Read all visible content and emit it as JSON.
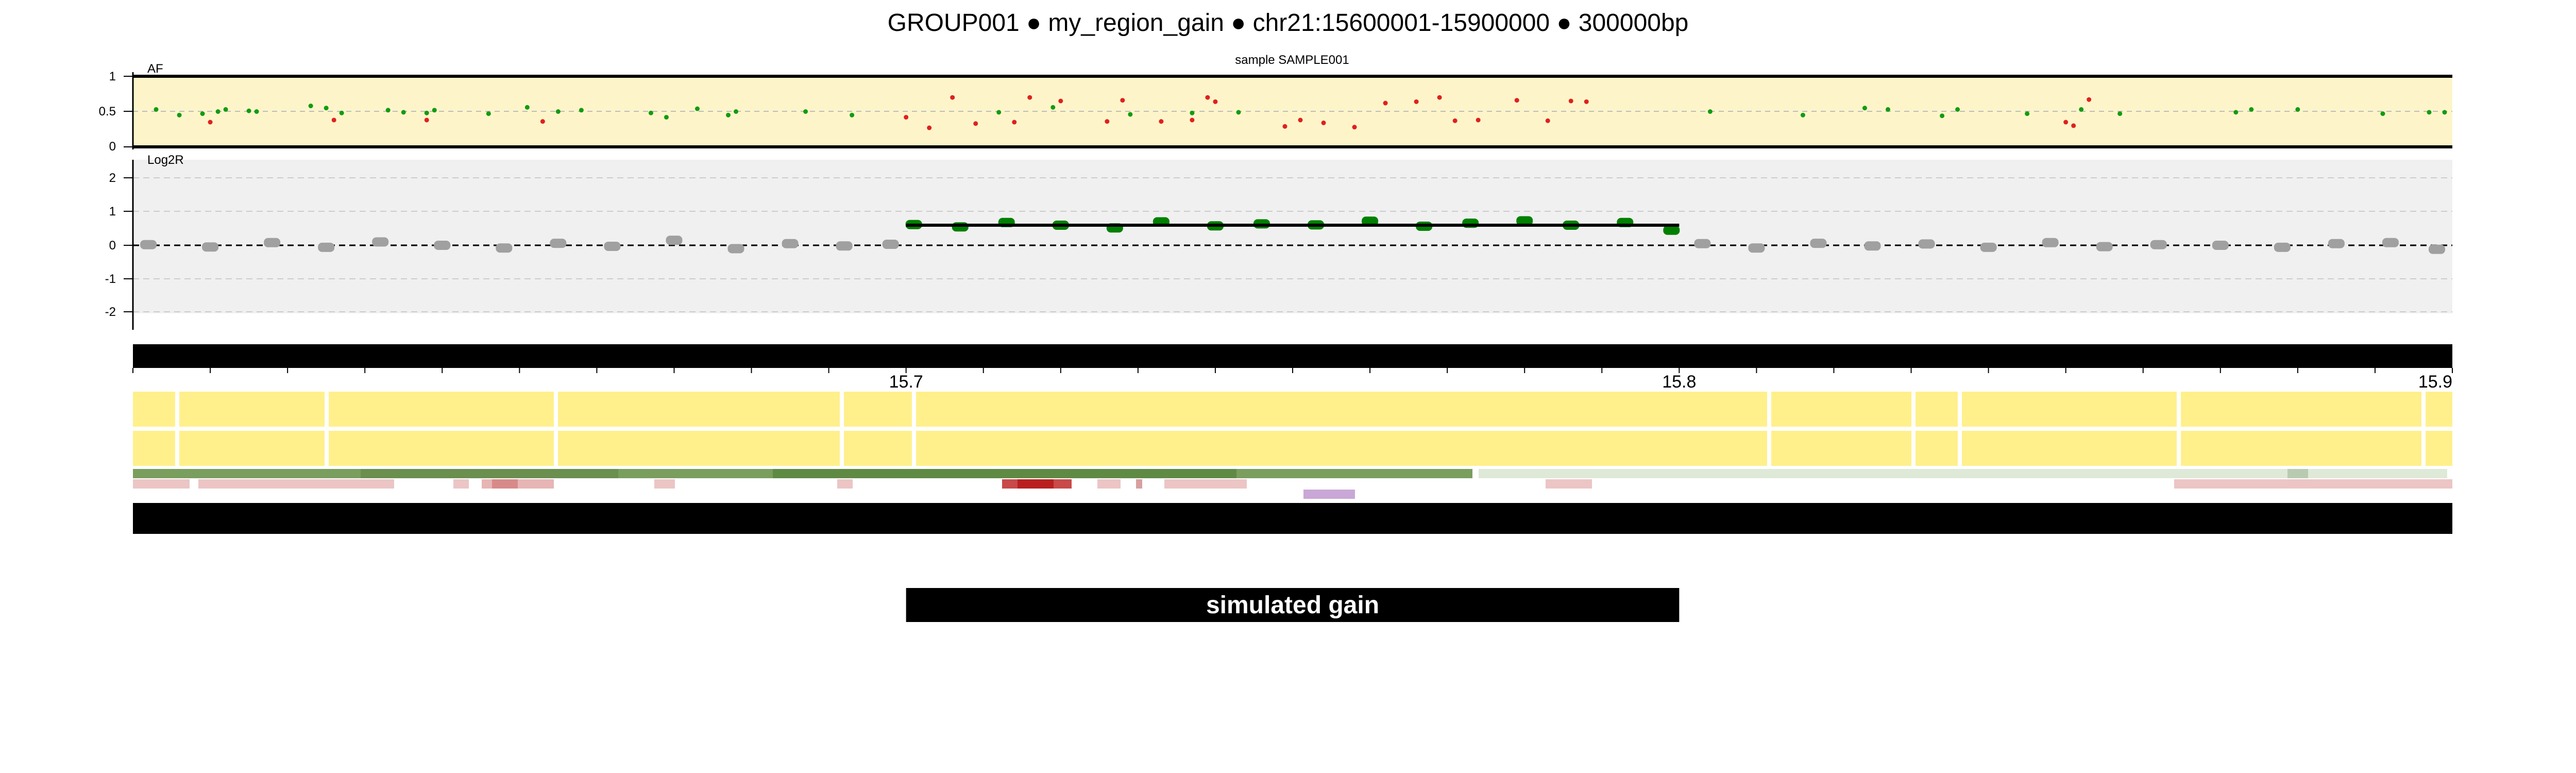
{
  "header": {
    "title": "GROUP001  ●  my_region_gain ● chr21:15600001-15900000 ● 300000bp"
  },
  "colors": {
    "af_background": "#fdf5c9",
    "log2r_background": "#f0f0f0",
    "gain": "#008000",
    "neutral": "#a0a0a0",
    "af_green": "#129b12",
    "af_red": "#e02020",
    "cytoband": "#fff08c",
    "region_bar": "#000000"
  },
  "chart_data": [
    {
      "type": "scatter",
      "name": "af-panel",
      "title": "sample SAMPLE001",
      "ylabel": "AF",
      "ylim": [
        0,
        1
      ],
      "yticks": [
        "1",
        "0.5",
        "0"
      ],
      "xlim": [
        15.6,
        15.9
      ],
      "reference_line": 0.5,
      "series": [
        {
          "color_key": "af_green",
          "x": [
            15.603,
            15.606,
            15.609,
            15.611,
            15.612,
            15.615,
            15.616,
            15.623,
            15.625,
            15.627,
            15.633,
            15.635,
            15.638,
            15.639,
            15.646,
            15.651,
            15.655,
            15.658,
            15.667,
            15.669,
            15.673,
            15.677,
            15.678,
            15.687,
            15.693,
            15.712,
            15.719,
            15.729,
            15.737,
            15.743,
            15.804,
            15.816,
            15.824,
            15.827,
            15.834,
            15.836,
            15.845,
            15.852,
            15.857,
            15.872,
            15.874,
            15.88,
            15.891,
            15.897,
            15.899
          ],
          "y": [
            0.53,
            0.45,
            0.47,
            0.5,
            0.53,
            0.51,
            0.5,
            0.58,
            0.55,
            0.48,
            0.52,
            0.49,
            0.48,
            0.52,
            0.47,
            0.56,
            0.5,
            0.52,
            0.48,
            0.42,
            0.54,
            0.45,
            0.5,
            0.5,
            0.45,
            0.49,
            0.56,
            0.46,
            0.48,
            0.49,
            0.5,
            0.45,
            0.55,
            0.53,
            0.44,
            0.53,
            0.47,
            0.53,
            0.47,
            0.49,
            0.53,
            0.53,
            0.47,
            0.49,
            0.49
          ]
        },
        {
          "color_key": "af_red",
          "x": [
            15.61,
            15.626,
            15.638,
            15.653,
            15.7,
            15.703,
            15.706,
            15.709,
            15.714,
            15.716,
            15.72,
            15.726,
            15.728,
            15.733,
            15.737,
            15.739,
            15.74,
            15.749,
            15.751,
            15.754,
            15.758,
            15.762,
            15.766,
            15.769,
            15.771,
            15.774,
            15.779,
            15.783,
            15.786,
            15.788,
            15.85,
            15.851,
            15.853
          ],
          "y": [
            0.35,
            0.38,
            0.38,
            0.36,
            0.42,
            0.27,
            0.7,
            0.33,
            0.35,
            0.7,
            0.65,
            0.36,
            0.66,
            0.36,
            0.38,
            0.7,
            0.64,
            0.29,
            0.38,
            0.34,
            0.28,
            0.62,
            0.64,
            0.7,
            0.37,
            0.38,
            0.66,
            0.37,
            0.65,
            0.64,
            0.35,
            0.3,
            0.67
          ]
        }
      ]
    },
    {
      "type": "scatter",
      "name": "log2r-panel",
      "ylabel": "Log2R",
      "ylim": [
        -2.5,
        2.5
      ],
      "yticks": [
        "2",
        "1",
        "0",
        "-1",
        "-2"
      ],
      "xlim": [
        15.6,
        15.9
      ],
      "gain_segment": {
        "x_start": 15.7,
        "x_end": 15.8,
        "value": 0.6
      },
      "series": [
        {
          "color_key": "neutral",
          "x": [
            15.602,
            15.61,
            15.618,
            15.625,
            15.632,
            15.64,
            15.648,
            15.655,
            15.662,
            15.67,
            15.678,
            15.685,
            15.692,
            15.698,
            15.803,
            15.81,
            15.818,
            15.825,
            15.832,
            15.84,
            15.848,
            15.855,
            15.862,
            15.87,
            15.878,
            15.885,
            15.892,
            15.898
          ],
          "y": [
            0.02,
            -0.05,
            0.08,
            -0.06,
            0.1,
            0.0,
            -0.08,
            0.06,
            -0.03,
            0.15,
            -0.1,
            0.05,
            -0.02,
            0.03,
            0.05,
            -0.08,
            0.06,
            -0.02,
            0.04,
            -0.06,
            0.08,
            -0.04,
            0.02,
            0.0,
            -0.06,
            0.05,
            0.08,
            -0.12
          ]
        },
        {
          "color_key": "gain",
          "x": [
            15.701,
            15.707,
            15.713,
            15.72,
            15.727,
            15.733,
            15.74,
            15.746,
            15.753,
            15.76,
            15.767,
            15.773,
            15.78,
            15.786,
            15.793,
            15.799
          ],
          "y": [
            0.62,
            0.55,
            0.68,
            0.6,
            0.52,
            0.7,
            0.58,
            0.64,
            0.61,
            0.72,
            0.57,
            0.66,
            0.73,
            0.6,
            0.68,
            0.45
          ]
        }
      ]
    },
    {
      "type": "bar",
      "name": "region-axis",
      "x_tick_labels": [
        "15.7",
        "15.8",
        "15.9"
      ],
      "x_tick_values": [
        15.7,
        15.8,
        15.9
      ],
      "xlim": [
        15.6,
        15.9
      ]
    }
  ],
  "region_label": "simulated gain"
}
